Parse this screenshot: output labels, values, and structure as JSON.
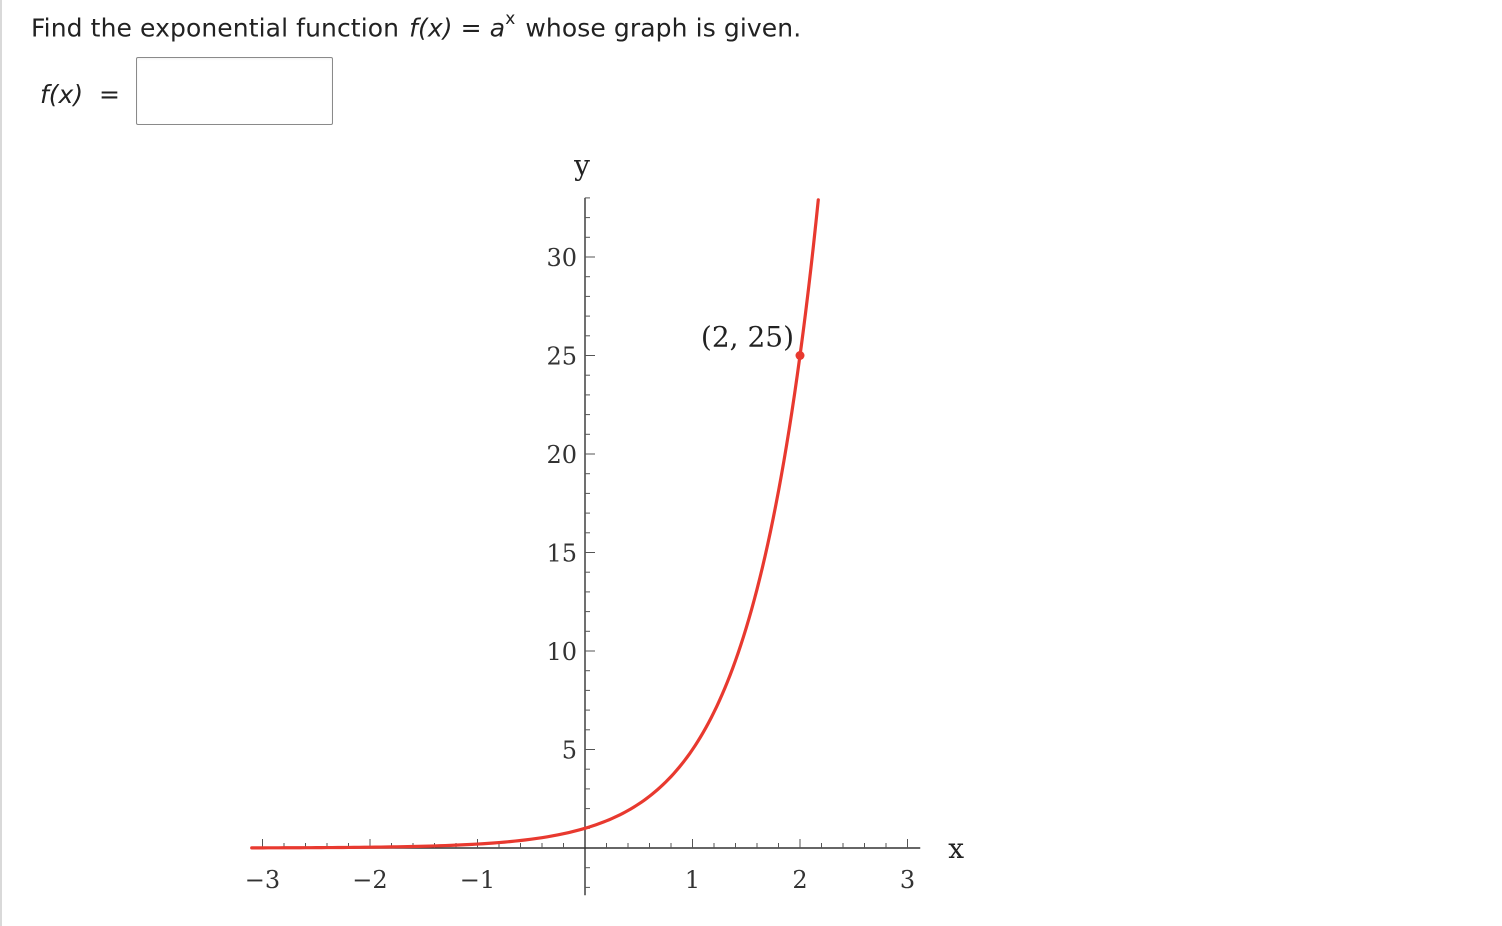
{
  "question": {
    "prefix": "Find the exponential function",
    "func": "f(x)",
    "equals": "=",
    "base": "a",
    "exponent": "x",
    "suffix": "whose graph is given."
  },
  "answer": {
    "label_func": "f(x)",
    "label_equals": "=",
    "value": ""
  },
  "chart_data": {
    "type": "line",
    "function": "f(x) = 5^x",
    "xlabel": "x",
    "ylabel": "y",
    "xlim": [
      -3.1,
      3.1
    ],
    "ylim": [
      -2.4,
      33
    ],
    "x_ticks": [
      -3,
      -2,
      -1,
      1,
      2,
      3
    ],
    "x_tick_labels": [
      "−3",
      "−2",
      "−1",
      "1",
      "2",
      "3"
    ],
    "y_ticks": [
      5,
      10,
      15,
      20,
      25,
      30
    ],
    "y_tick_labels": [
      "5",
      "10",
      "15",
      "20",
      "25",
      "30"
    ],
    "series": [
      {
        "color": "#e8392f",
        "x": [
          -3.1,
          -3,
          -2.5,
          -2,
          -1.5,
          -1,
          -0.5,
          0,
          0.25,
          0.5,
          0.75,
          1,
          1.25,
          1.5,
          1.75,
          2,
          2.1,
          2.17
        ],
        "y": [
          0.007,
          0.008,
          0.018,
          0.04,
          0.089,
          0.2,
          0.447,
          1,
          1.495,
          2.236,
          3.344,
          5,
          7.477,
          11.18,
          16.72,
          25,
          29.36,
          32.9
        ]
      }
    ],
    "points": [
      {
        "x": 2,
        "y": 25,
        "label": "(2, 25)"
      }
    ],
    "grid": false
  }
}
